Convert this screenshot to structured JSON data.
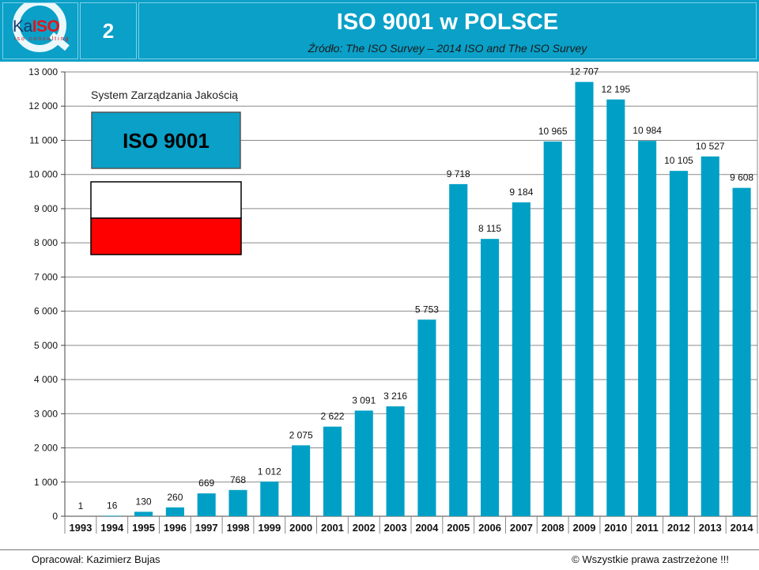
{
  "header": {
    "logo_text_part1": "Ka",
    "logo_text_part2": "ISO",
    "logo_sub": "iso consulting",
    "page_number": "2",
    "title": "ISO 9001 w POLSCE",
    "subtitle": "Źródło: The ISO Survey – 2014   ISO and The ISO Survey"
  },
  "legend": {
    "caption": "System Zarządzania Jakością",
    "box_label": "ISO 9001",
    "flag_colors": [
      "#ffffff",
      "#ff0000"
    ]
  },
  "footer": {
    "left": "Opracował: Kazimierz Bujas",
    "right": "©  Wszystkie prawa zastrzeżone !!!"
  },
  "colors": {
    "accent": "#0aa0c8",
    "bar": "#00a0c6"
  },
  "chart_data": {
    "type": "bar",
    "categories": [
      "1993",
      "1994",
      "1995",
      "1996",
      "1997",
      "1998",
      "1999",
      "2000",
      "2001",
      "2002",
      "2003",
      "2004",
      "2005",
      "2006",
      "2007",
      "2008",
      "2009",
      "2010",
      "2011",
      "2012",
      "2013",
      "2014"
    ],
    "values": [
      1,
      16,
      130,
      260,
      669,
      768,
      1012,
      2075,
      2622,
      3091,
      3216,
      5753,
      9718,
      8115,
      9184,
      10965,
      12707,
      12195,
      10984,
      10105,
      10527,
      9608
    ],
    "value_labels": [
      "1",
      "16",
      "130",
      "260",
      "669",
      "768",
      "1 012",
      "2 075",
      "2 622",
      "3 091",
      "3 216",
      "5 753",
      "9 718",
      "8 115",
      "9 184",
      "10 965",
      "12 707",
      "12 195",
      "10 984",
      "10 105",
      "10 527",
      "9 608"
    ],
    "ylim": [
      0,
      13000
    ],
    "yticks": [
      0,
      1000,
      2000,
      3000,
      4000,
      5000,
      6000,
      7000,
      8000,
      9000,
      10000,
      11000,
      12000,
      13000
    ],
    "ytick_labels": [
      "0",
      "1 000",
      "2 000",
      "3 000",
      "4 000",
      "5 000",
      "6 000",
      "7 000",
      "8 000",
      "9 000",
      "10 000",
      "11 000",
      "12 000",
      "13 000"
    ],
    "grid": true
  }
}
